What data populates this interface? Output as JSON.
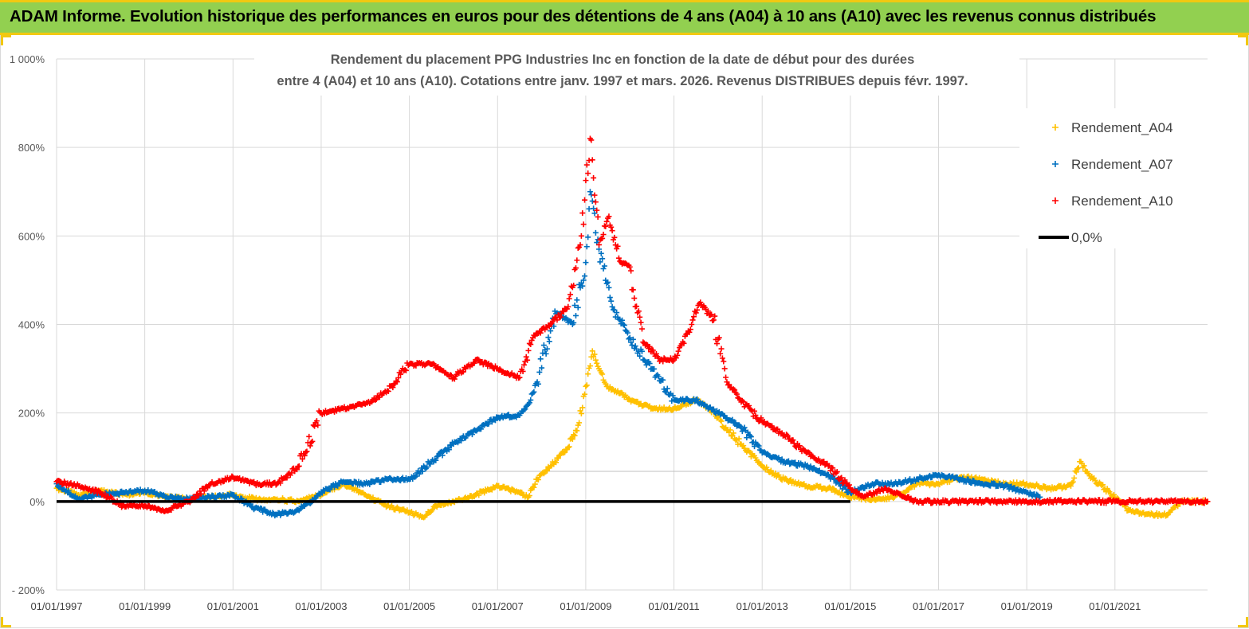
{
  "banner": {
    "title": "ADAM Informe. Evolution historique des performances en euros pour des détentions de 4 ans (A04) à 10 ans (A10) avec les revenus connus distribués"
  },
  "chart_data": {
    "type": "scatter",
    "title_lines": [
      "Rendement du placement PPG Industries Inc en fonction de la date de début pour des durées",
      "entre 4 (A04) et 10 ans (A10). Cotations entre janv. 1997 et mars. 2026. Revenus DISTRIBUES depuis févr. 1997."
    ],
    "xlabel": "",
    "ylabel": "",
    "x_ticks": [
      "01/01/1997",
      "01/01/1999",
      "01/01/2001",
      "01/01/2003",
      "01/01/2005",
      "01/01/2007",
      "01/01/2009",
      "01/01/2011",
      "01/01/2013",
      "01/01/2015",
      "01/01/2017",
      "01/01/2019",
      "01/01/2021"
    ],
    "xlim": [
      1997.0,
      2023.1
    ],
    "y_ticks": [
      "- 200%",
      "0%",
      "200%",
      "400%",
      "600%",
      "800%",
      "1 000%"
    ],
    "y_tick_values": [
      -200,
      0,
      200,
      400,
      600,
      800,
      1000
    ],
    "ylim": [
      -200,
      1000
    ],
    "grid": true,
    "legend_position": "top-right",
    "series": [
      {
        "name": "Rendement_A04",
        "color": "#ffc000",
        "marker": "+",
        "points": [
          [
            1997.0,
            30
          ],
          [
            1997.5,
            15
          ],
          [
            1998.0,
            25
          ],
          [
            1998.5,
            15
          ],
          [
            1999.0,
            20
          ],
          [
            1999.5,
            10
          ],
          [
            2000.0,
            5
          ],
          [
            2000.5,
            10
          ],
          [
            2001.0,
            15
          ],
          [
            2001.5,
            5
          ],
          [
            2002.0,
            5
          ],
          [
            2002.5,
            0
          ],
          [
            2003.0,
            15
          ],
          [
            2003.5,
            40
          ],
          [
            2004.0,
            15
          ],
          [
            2004.5,
            -10
          ],
          [
            2005.0,
            -25
          ],
          [
            2005.3,
            -35
          ],
          [
            2005.6,
            -10
          ],
          [
            2006.0,
            0
          ],
          [
            2006.5,
            15
          ],
          [
            2007.0,
            35
          ],
          [
            2007.5,
            20
          ],
          [
            2007.7,
            10
          ],
          [
            2007.9,
            50
          ],
          [
            2008.2,
            80
          ],
          [
            2008.5,
            110
          ],
          [
            2008.8,
            160
          ],
          [
            2009.0,
            260
          ],
          [
            2009.15,
            340
          ],
          [
            2009.3,
            300
          ],
          [
            2009.5,
            260
          ],
          [
            2010.0,
            230
          ],
          [
            2010.5,
            210
          ],
          [
            2011.0,
            210
          ],
          [
            2011.5,
            230
          ],
          [
            2011.8,
            210
          ],
          [
            2012.0,
            190
          ],
          [
            2012.5,
            130
          ],
          [
            2013.0,
            80
          ],
          [
            2013.5,
            50
          ],
          [
            2014.0,
            35
          ],
          [
            2014.5,
            30
          ],
          [
            2015.0,
            10
          ],
          [
            2015.5,
            5
          ],
          [
            2016.0,
            10
          ],
          [
            2016.5,
            40
          ],
          [
            2017.0,
            40
          ],
          [
            2017.5,
            55
          ],
          [
            2018.0,
            50
          ],
          [
            2018.5,
            40
          ],
          [
            2019.0,
            40
          ],
          [
            2019.5,
            30
          ],
          [
            2020.0,
            35
          ],
          [
            2020.2,
            90
          ],
          [
            2020.5,
            50
          ],
          [
            2021.0,
            10
          ],
          [
            2021.3,
            -20
          ],
          [
            2021.8,
            -30
          ],
          [
            2022.2,
            -30
          ],
          [
            2022.5,
            0
          ],
          [
            2023.1,
            0
          ]
        ]
      },
      {
        "name": "Rendement_A07",
        "color": "#0070c0",
        "marker": "+",
        "points": [
          [
            1997.0,
            40
          ],
          [
            1997.5,
            5
          ],
          [
            1998.0,
            15
          ],
          [
            1998.5,
            20
          ],
          [
            1999.0,
            25
          ],
          [
            1999.5,
            10
          ],
          [
            2000.0,
            5
          ],
          [
            2000.5,
            10
          ],
          [
            2001.0,
            15
          ],
          [
            2001.5,
            -15
          ],
          [
            2002.0,
            -30
          ],
          [
            2002.5,
            -20
          ],
          [
            2003.0,
            20
          ],
          [
            2003.5,
            45
          ],
          [
            2004.0,
            40
          ],
          [
            2004.5,
            50
          ],
          [
            2005.0,
            50
          ],
          [
            2005.5,
            90
          ],
          [
            2006.0,
            130
          ],
          [
            2006.5,
            160
          ],
          [
            2007.0,
            190
          ],
          [
            2007.5,
            195
          ],
          [
            2007.7,
            220
          ],
          [
            2007.9,
            270
          ],
          [
            2008.3,
            430
          ],
          [
            2008.7,
            400
          ],
          [
            2009.0,
            540
          ],
          [
            2009.1,
            700
          ],
          [
            2009.3,
            570
          ],
          [
            2009.6,
            440
          ],
          [
            2010.0,
            370
          ],
          [
            2010.5,
            300
          ],
          [
            2011.0,
            230
          ],
          [
            2011.5,
            230
          ],
          [
            2012.0,
            200
          ],
          [
            2012.5,
            170
          ],
          [
            2013.0,
            110
          ],
          [
            2013.5,
            90
          ],
          [
            2014.0,
            80
          ],
          [
            2014.5,
            60
          ],
          [
            2015.0,
            20
          ],
          [
            2015.5,
            40
          ],
          [
            2016.0,
            40
          ],
          [
            2016.5,
            50
          ],
          [
            2017.0,
            60
          ],
          [
            2017.5,
            50
          ],
          [
            2018.0,
            40
          ],
          [
            2018.5,
            35
          ],
          [
            2019.0,
            20
          ],
          [
            2019.3,
            10
          ]
        ]
      },
      {
        "name": "Rendement_A10",
        "color": "#ff0000",
        "marker": "+",
        "points": [
          [
            1997.0,
            45
          ],
          [
            1997.5,
            35
          ],
          [
            1998.0,
            20
          ],
          [
            1998.5,
            -10
          ],
          [
            1999.0,
            -10
          ],
          [
            1999.5,
            -20
          ],
          [
            2000.0,
            0
          ],
          [
            2000.5,
            40
          ],
          [
            2001.0,
            55
          ],
          [
            2001.5,
            40
          ],
          [
            2002.0,
            40
          ],
          [
            2002.5,
            80
          ],
          [
            2003.0,
            200
          ],
          [
            2003.5,
            210
          ],
          [
            2004.0,
            220
          ],
          [
            2004.5,
            250
          ],
          [
            2005.0,
            310
          ],
          [
            2005.5,
            310
          ],
          [
            2006.0,
            280
          ],
          [
            2006.5,
            320
          ],
          [
            2007.0,
            300
          ],
          [
            2007.5,
            280
          ],
          [
            2007.8,
            370
          ],
          [
            2008.2,
            400
          ],
          [
            2008.6,
            440
          ],
          [
            2008.9,
            600
          ],
          [
            2009.1,
            820
          ],
          [
            2009.3,
            580
          ],
          [
            2009.5,
            640
          ],
          [
            2009.8,
            540
          ],
          [
            2010.0,
            530
          ],
          [
            2010.3,
            360
          ],
          [
            2010.7,
            320
          ],
          [
            2011.0,
            320
          ],
          [
            2011.3,
            380
          ],
          [
            2011.6,
            450
          ],
          [
            2011.9,
            410
          ],
          [
            2012.2,
            270
          ],
          [
            2012.5,
            230
          ],
          [
            2013.0,
            180
          ],
          [
            2013.5,
            150
          ],
          [
            2014.0,
            110
          ],
          [
            2014.5,
            80
          ],
          [
            2015.0,
            30
          ],
          [
            2015.3,
            10
          ],
          [
            2015.8,
            30
          ],
          [
            2016.0,
            20
          ],
          [
            2016.5,
            0
          ],
          [
            2017.0,
            0
          ],
          [
            2018.0,
            0
          ],
          [
            2019.0,
            0
          ],
          [
            2020.0,
            0
          ],
          [
            2021.0,
            0
          ],
          [
            2022.0,
            0
          ],
          [
            2023.1,
            0
          ]
        ]
      },
      {
        "name": "0,0%",
        "color": "#000000",
        "marker": "line",
        "points": [
          [
            1997.0,
            0
          ],
          [
            2015.0,
            0
          ]
        ]
      }
    ]
  }
}
